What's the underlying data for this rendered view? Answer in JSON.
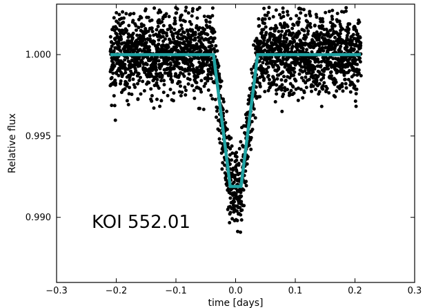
{
  "chart_data": {
    "type": "scatter",
    "title": "",
    "xlabel": "time [days]",
    "ylabel": "Relative flux",
    "xlim": [
      -0.3,
      0.3
    ],
    "ylim": [
      0.986,
      1.0031
    ],
    "grid": false,
    "x_ticks": [
      -0.3,
      -0.2,
      -0.1,
      0.0,
      0.1,
      0.2,
      0.3
    ],
    "x_tick_labels": [
      "−0.3",
      "−0.2",
      "−0.1",
      "0.0",
      "0.1",
      "0.2",
      "0.3"
    ],
    "y_ticks": [
      0.99,
      0.995,
      1.0
    ],
    "y_tick_labels": [
      "0.990",
      "0.995",
      "1.000"
    ],
    "annotation": "KOI 552.01",
    "point_color": "#000000",
    "model_color": "#1fa3a3",
    "data_range_x": [
      -0.21,
      0.21
    ],
    "baseline_flux": 1.0,
    "baseline_scatter": 0.0012,
    "point_count": 2600,
    "model": {
      "x": [
        -0.21,
        -0.037,
        -0.009,
        0.009,
        0.037,
        0.21
      ],
      "y": [
        1.0,
        1.0,
        0.9919,
        0.9919,
        1.0,
        1.0
      ]
    }
  }
}
